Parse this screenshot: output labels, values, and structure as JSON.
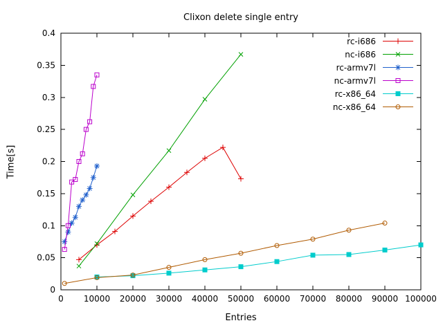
{
  "chart_data": {
    "type": "line",
    "title": "Clixon delete single entry",
    "xlabel": "Entries",
    "ylabel": "Time[s]",
    "xlim": [
      0,
      100000
    ],
    "ylim": [
      0,
      0.4
    ],
    "xticks": [
      0,
      10000,
      20000,
      30000,
      40000,
      50000,
      60000,
      70000,
      80000,
      90000,
      100000
    ],
    "yticks": [
      0,
      0.05,
      0.1,
      0.15,
      0.2,
      0.25,
      0.3,
      0.35,
      0.4
    ],
    "grid": false,
    "legend_position": "top-right-inside",
    "series": [
      {
        "name": "rc-i686",
        "color": "#dd0000",
        "marker": "plus",
        "x": [
          5000,
          10000,
          15000,
          20000,
          25000,
          30000,
          35000,
          40000,
          45000,
          50000
        ],
        "y": [
          0.047,
          0.07,
          0.091,
          0.115,
          0.138,
          0.16,
          0.183,
          0.205,
          0.222,
          0.173
        ]
      },
      {
        "name": "nc-i686",
        "color": "#00a000",
        "marker": "cross",
        "x": [
          5000,
          10000,
          20000,
          30000,
          40000,
          50000
        ],
        "y": [
          0.037,
          0.072,
          0.148,
          0.217,
          0.297,
          0.367
        ]
      },
      {
        "name": "rc-armv7l",
        "color": "#2060cc",
        "marker": "asterisk",
        "x": [
          1000,
          2000,
          3000,
          4000,
          5000,
          6000,
          7000,
          8000,
          9000,
          10000
        ],
        "y": [
          0.075,
          0.09,
          0.104,
          0.113,
          0.13,
          0.14,
          0.148,
          0.158,
          0.175,
          0.193
        ]
      },
      {
        "name": "nc-armv7l",
        "color": "#bb00cc",
        "marker": "square-open",
        "x": [
          1000,
          2000,
          3000,
          4000,
          5000,
          6000,
          7000,
          8000,
          9000,
          10000
        ],
        "y": [
          0.063,
          0.1,
          0.168,
          0.172,
          0.2,
          0.212,
          0.25,
          0.262,
          0.317,
          0.335
        ]
      },
      {
        "name": "rc-x86_64",
        "color": "#00cccc",
        "marker": "square-filled",
        "x": [
          10000,
          20000,
          30000,
          40000,
          50000,
          60000,
          70000,
          80000,
          90000,
          100000
        ],
        "y": [
          0.02,
          0.022,
          0.026,
          0.031,
          0.036,
          0.044,
          0.054,
          0.055,
          0.062,
          0.07
        ]
      },
      {
        "name": "nc-x86_64",
        "color": "#b05a00",
        "marker": "circle-open",
        "x": [
          1000,
          10000,
          20000,
          30000,
          40000,
          50000,
          60000,
          70000,
          80000,
          90000
        ],
        "y": [
          0.01,
          0.019,
          0.023,
          0.035,
          0.047,
          0.057,
          0.069,
          0.079,
          0.093,
          0.104
        ]
      }
    ]
  }
}
